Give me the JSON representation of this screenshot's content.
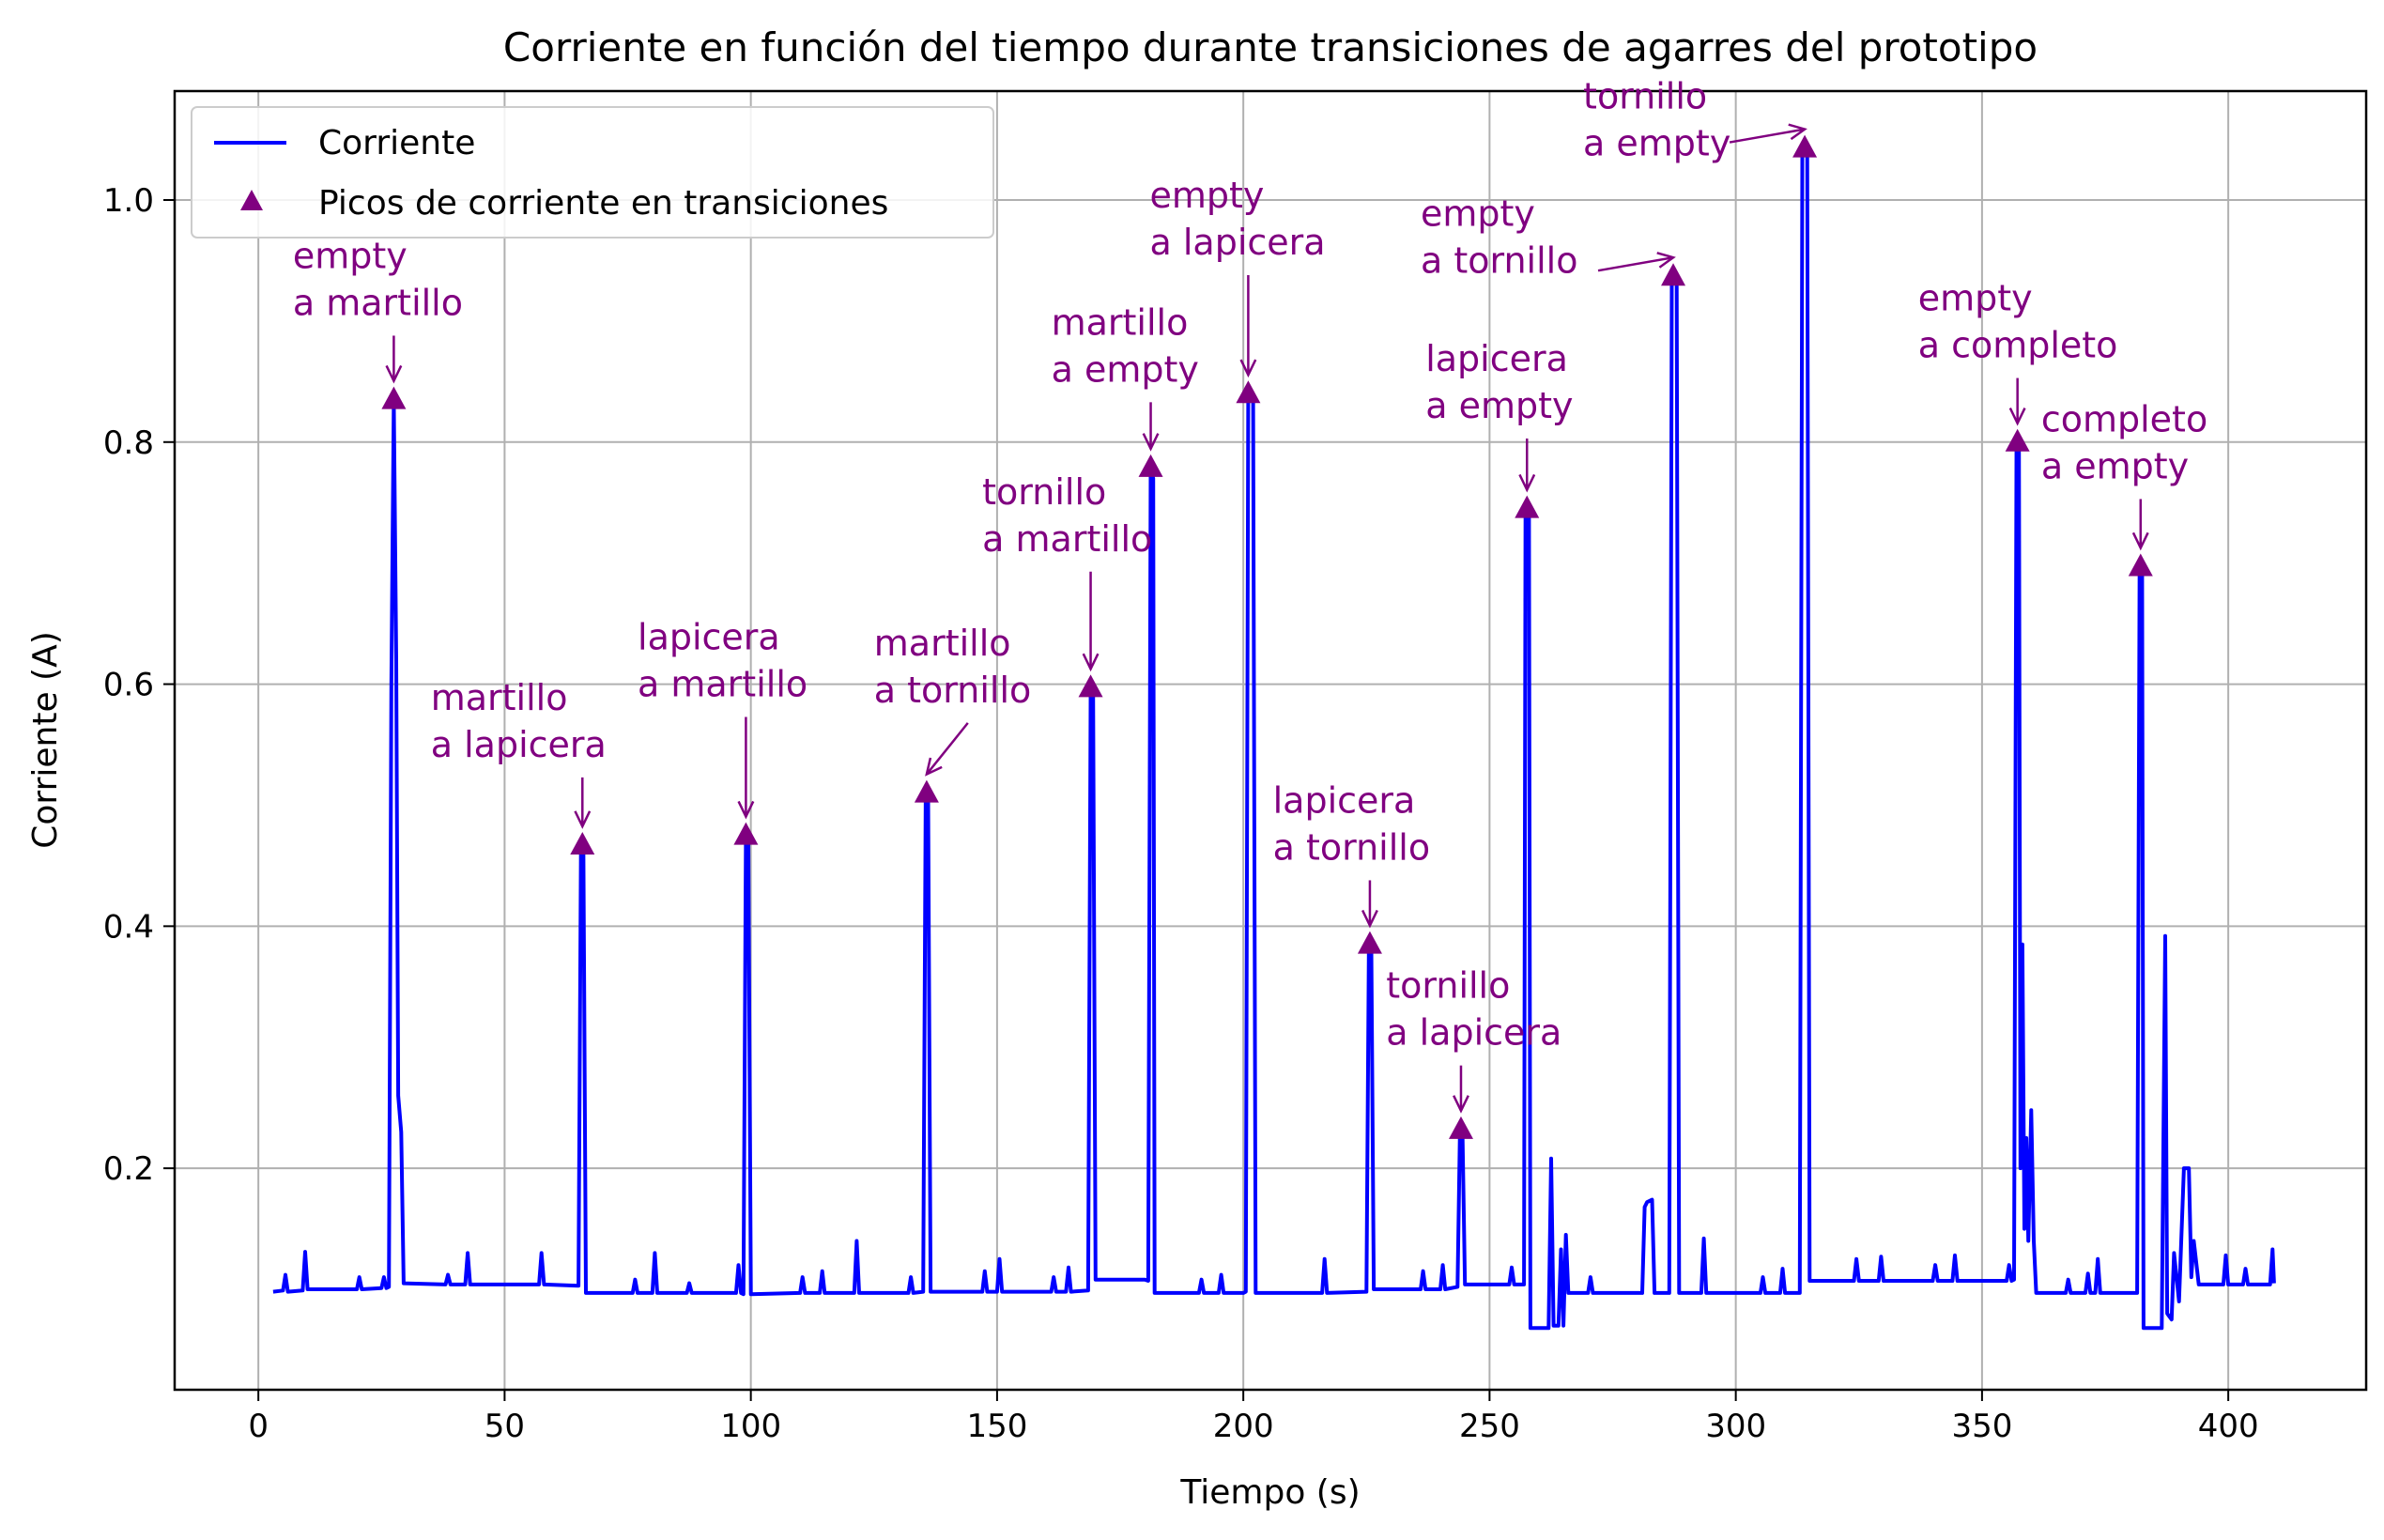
{
  "chart_data": {
    "type": "line",
    "title": "Corriente en función del tiempo durante transiciones de agarres del prototipo",
    "xlabel": "Tiempo (s)",
    "ylabel": "Corriente (A)",
    "xlim": [
      -17,
      428
    ],
    "ylim": [
      0.017,
      1.09
    ],
    "xticks": [
      0,
      50,
      100,
      150,
      200,
      250,
      300,
      350,
      400
    ],
    "yticks": [
      0.2,
      0.4,
      0.6,
      0.8,
      1.0
    ],
    "xtick_labels": [
      "0",
      "50",
      "100",
      "150",
      "200",
      "250",
      "300",
      "350",
      "400"
    ],
    "ytick_labels": [
      "0.2",
      "0.4",
      "0.6",
      "0.8",
      "1.0"
    ],
    "grid": true,
    "legend_position": "upper-left",
    "colors": {
      "line": "#0000ff",
      "marker": "#800080",
      "annotation": "#800080"
    },
    "legend": [
      {
        "label": "Corriente",
        "kind": "line"
      },
      {
        "label": "Picos de corriente en transiciones",
        "kind": "triangle-marker"
      }
    ],
    "series": [
      {
        "name": "Corriente",
        "kind": "line",
        "points": [
          [
            3,
            0.098
          ],
          [
            5,
            0.099
          ],
          [
            5.5,
            0.112
          ],
          [
            6,
            0.098
          ],
          [
            9,
            0.099
          ],
          [
            9.5,
            0.131
          ],
          [
            10,
            0.1
          ],
          [
            20,
            0.1
          ],
          [
            20.5,
            0.11
          ],
          [
            21,
            0.1
          ],
          [
            25,
            0.101
          ],
          [
            25.5,
            0.11
          ],
          [
            26,
            0.101
          ],
          [
            26.5,
            0.102
          ],
          [
            27,
            0.6
          ],
          [
            27.5,
            0.835
          ],
          [
            28,
            0.62
          ],
          [
            28.4,
            0.26
          ],
          [
            29,
            0.23
          ],
          [
            29.5,
            0.105
          ],
          [
            38,
            0.104
          ],
          [
            38.5,
            0.112
          ],
          [
            39,
            0.104
          ],
          [
            42,
            0.104
          ],
          [
            42.5,
            0.13
          ],
          [
            43,
            0.104
          ],
          [
            57,
            0.104
          ],
          [
            57.5,
            0.13
          ],
          [
            58,
            0.104
          ],
          [
            65,
            0.103
          ],
          [
            65.5,
            0.46
          ],
          [
            66,
            0.467
          ],
          [
            66.5,
            0.097
          ],
          [
            76,
            0.097
          ],
          [
            76.5,
            0.108
          ],
          [
            77,
            0.097
          ],
          [
            80,
            0.097
          ],
          [
            80.5,
            0.13
          ],
          [
            81,
            0.097
          ],
          [
            87,
            0.097
          ],
          [
            87.5,
            0.105
          ],
          [
            88,
            0.097
          ],
          [
            97,
            0.097
          ],
          [
            97.5,
            0.12
          ],
          [
            98,
            0.097
          ],
          [
            98.5,
            0.096
          ],
          [
            99,
            0.475
          ],
          [
            99.5,
            0.47
          ],
          [
            100,
            0.096
          ],
          [
            110,
            0.097
          ],
          [
            110.5,
            0.11
          ],
          [
            111,
            0.097
          ],
          [
            114,
            0.097
          ],
          [
            114.5,
            0.115
          ],
          [
            115,
            0.097
          ],
          [
            121,
            0.097
          ],
          [
            121.5,
            0.14
          ],
          [
            122,
            0.097
          ],
          [
            132,
            0.097
          ],
          [
            132.5,
            0.11
          ],
          [
            133,
            0.097
          ],
          [
            135,
            0.098
          ],
          [
            135.5,
            0.51
          ],
          [
            136,
            0.505
          ],
          [
            136.5,
            0.098
          ],
          [
            147,
            0.098
          ],
          [
            147.5,
            0.115
          ],
          [
            148,
            0.098
          ],
          [
            150,
            0.098
          ],
          [
            150.5,
            0.125
          ],
          [
            151,
            0.098
          ],
          [
            161,
            0.098
          ],
          [
            161.5,
            0.11
          ],
          [
            162,
            0.098
          ],
          [
            164,
            0.098
          ],
          [
            164.5,
            0.118
          ],
          [
            165,
            0.098
          ],
          [
            168.5,
            0.099
          ],
          [
            169,
            0.598
          ],
          [
            169.5,
            0.59
          ],
          [
            170,
            0.108
          ],
          [
            180,
            0.108
          ],
          [
            180.7,
            0.107
          ],
          [
            181.2,
            0.779
          ],
          [
            181.7,
            0.77
          ],
          [
            182,
            0.097
          ],
          [
            191,
            0.097
          ],
          [
            191.5,
            0.108
          ],
          [
            192,
            0.097
          ],
          [
            195,
            0.097
          ],
          [
            195.5,
            0.112
          ],
          [
            196,
            0.097
          ],
          [
            200,
            0.097
          ],
          [
            200.5,
            0.098
          ],
          [
            201,
            0.84
          ],
          [
            202,
            0.835
          ],
          [
            202.5,
            0.097
          ],
          [
            216,
            0.097
          ],
          [
            216.5,
            0.125
          ],
          [
            217,
            0.097
          ],
          [
            225,
            0.098
          ],
          [
            225.5,
            0.385
          ],
          [
            226,
            0.38
          ],
          [
            226.5,
            0.1
          ],
          [
            236,
            0.1
          ],
          [
            236.5,
            0.115
          ],
          [
            237,
            0.1
          ],
          [
            240,
            0.1
          ],
          [
            240.5,
            0.12
          ],
          [
            241,
            0.1
          ],
          [
            243.5,
            0.102
          ],
          [
            244,
            0.232
          ],
          [
            244.5,
            0.228
          ],
          [
            245,
            0.104
          ],
          [
            254,
            0.104
          ],
          [
            254.5,
            0.118
          ],
          [
            255,
            0.104
          ],
          [
            257,
            0.104
          ],
          [
            257.3,
            0.745
          ],
          [
            258,
            0.74
          ],
          [
            258.3,
            0.068
          ],
          [
            262,
            0.068
          ],
          [
            262.5,
            0.208
          ],
          [
            263,
            0.07
          ],
          [
            264,
            0.07
          ],
          [
            264.5,
            0.133
          ],
          [
            265,
            0.07
          ],
          [
            265.5,
            0.145
          ],
          [
            266,
            0.097
          ],
          [
            270,
            0.097
          ],
          [
            270.5,
            0.11
          ],
          [
            271,
            0.097
          ],
          [
            281,
            0.097
          ],
          [
            281.5,
            0.168
          ],
          [
            282,
            0.172
          ],
          [
            283,
            0.174
          ],
          [
            283.5,
            0.097
          ],
          [
            286.5,
            0.097
          ],
          [
            287,
            0.937
          ],
          [
            288,
            0.932
          ],
          [
            288.5,
            0.097
          ],
          [
            293,
            0.097
          ],
          [
            293.5,
            0.142
          ],
          [
            294,
            0.097
          ],
          [
            305,
            0.097
          ],
          [
            305.5,
            0.11
          ],
          [
            306,
            0.097
          ],
          [
            309,
            0.097
          ],
          [
            309.5,
            0.117
          ],
          [
            310,
            0.097
          ],
          [
            313,
            0.097
          ],
          [
            313.5,
            1.04
          ],
          [
            314.5,
            1.043
          ],
          [
            315,
            0.107
          ],
          [
            324,
            0.107
          ],
          [
            324.5,
            0.125
          ],
          [
            325,
            0.107
          ],
          [
            329,
            0.107
          ],
          [
            329.5,
            0.127
          ],
          [
            330,
            0.107
          ],
          [
            340,
            0.107
          ],
          [
            340.5,
            0.12
          ],
          [
            341,
            0.107
          ],
          [
            344,
            0.107
          ],
          [
            344.5,
            0.128
          ],
          [
            345,
            0.107
          ],
          [
            355,
            0.107
          ],
          [
            355.5,
            0.12
          ],
          [
            356,
            0.107
          ],
          [
            356.5,
            0.108
          ],
          [
            357,
            0.8
          ],
          [
            357.5,
            0.795
          ],
          [
            357.8,
            0.2
          ],
          [
            358.2,
            0.385
          ],
          [
            358.6,
            0.15
          ],
          [
            359,
            0.225
          ],
          [
            359.4,
            0.14
          ],
          [
            360,
            0.248
          ],
          [
            360.5,
            0.14
          ],
          [
            361,
            0.097
          ],
          [
            367,
            0.097
          ],
          [
            367.5,
            0.108
          ],
          [
            368,
            0.097
          ],
          [
            371,
            0.097
          ],
          [
            371.5,
            0.113
          ],
          [
            372,
            0.097
          ],
          [
            373,
            0.097
          ],
          [
            373.5,
            0.125
          ],
          [
            374,
            0.097
          ],
          [
            381.5,
            0.097
          ],
          [
            382,
            0.695
          ],
          [
            382.5,
            0.69
          ],
          [
            382.8,
            0.068
          ],
          [
            386.5,
            0.068
          ],
          [
            387.2,
            0.392
          ],
          [
            387.6,
            0.08
          ],
          [
            388.5,
            0.075
          ],
          [
            389,
            0.13
          ],
          [
            390,
            0.09
          ],
          [
            391,
            0.2
          ],
          [
            392,
            0.2
          ],
          [
            392.5,
            0.11
          ],
          [
            393,
            0.14
          ],
          [
            394,
            0.104
          ],
          [
            399,
            0.104
          ],
          [
            399.5,
            0.128
          ],
          [
            400,
            0.104
          ],
          [
            403,
            0.104
          ],
          [
            403.5,
            0.117
          ],
          [
            404,
            0.104
          ],
          [
            408.5,
            0.104
          ],
          [
            409,
            0.133
          ],
          [
            409.3,
            0.105
          ]
        ]
      },
      {
        "name": "Picos de corriente en transiciones",
        "kind": "scatter-triangle",
        "points": [
          [
            27.5,
            0.835
          ],
          [
            65.8,
            0.467
          ],
          [
            99,
            0.475
          ],
          [
            135.7,
            0.51
          ],
          [
            169,
            0.597
          ],
          [
            181.2,
            0.779
          ],
          [
            201,
            0.84
          ],
          [
            225.7,
            0.385
          ],
          [
            244.2,
            0.232
          ],
          [
            257.6,
            0.745
          ],
          [
            287.3,
            0.937
          ],
          [
            314,
            1.043
          ],
          [
            357.2,
            0.8
          ],
          [
            382.2,
            0.697
          ]
        ]
      }
    ],
    "annotations": [
      {
        "text": [
          "empty",
          "a martillo"
        ],
        "point": [
          27.5,
          0.835
        ],
        "text_at": [
          7,
          0.905
        ]
      },
      {
        "text": [
          "martillo",
          "a lapicera"
        ],
        "point": [
          65.8,
          0.467
        ],
        "text_at": [
          35,
          0.54
        ]
      },
      {
        "text": [
          "lapicera",
          "a martillo"
        ],
        "point": [
          99,
          0.475
        ],
        "text_at": [
          77,
          0.59
        ]
      },
      {
        "text": [
          "martillo",
          "a tornillo"
        ],
        "point": [
          135.7,
          0.51
        ],
        "text_at": [
          125,
          0.585
        ]
      },
      {
        "text": [
          "tornillo",
          "a martillo"
        ],
        "point": [
          169,
          0.597
        ],
        "text_at": [
          147,
          0.71
        ]
      },
      {
        "text": [
          "martillo",
          "a empty"
        ],
        "point": [
          181.2,
          0.779
        ],
        "text_at": [
          161,
          0.85
        ]
      },
      {
        "text": [
          "empty",
          "a lapicera"
        ],
        "point": [
          201,
          0.84
        ],
        "text_at": [
          181,
          0.955
        ]
      },
      {
        "text": [
          "lapicera",
          "a tornillo"
        ],
        "point": [
          225.7,
          0.385
        ],
        "text_at": [
          206,
          0.455
        ]
      },
      {
        "text": [
          "tornillo",
          "a lapicera"
        ],
        "point": [
          244.2,
          0.232
        ],
        "text_at": [
          229,
          0.302
        ]
      },
      {
        "text": [
          "lapicera",
          "a empty"
        ],
        "point": [
          257.6,
          0.745
        ],
        "text_at": [
          237,
          0.82
        ]
      },
      {
        "text": [
          "empty",
          "a tornillo"
        ],
        "point": [
          287.3,
          0.937
        ],
        "text_at": [
          236,
          0.94
        ]
      },
      {
        "text": [
          "tornillo",
          "a empty"
        ],
        "point": [
          314,
          1.043
        ],
        "text_at": [
          269,
          1.037
        ]
      },
      {
        "text": [
          "empty",
          "a completo"
        ],
        "point": [
          357.2,
          0.8
        ],
        "text_at": [
          337,
          0.87
        ]
      },
      {
        "text": [
          "completo",
          "a empty"
        ],
        "point": [
          382.2,
          0.697
        ],
        "text_at": [
          362,
          0.77
        ]
      }
    ]
  }
}
